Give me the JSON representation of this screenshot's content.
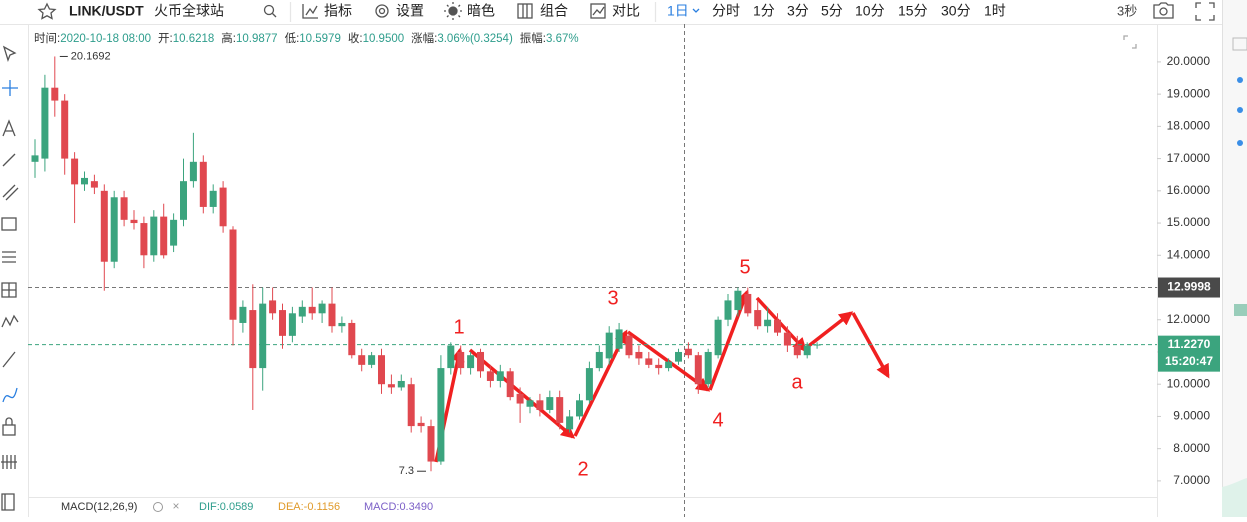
{
  "toolbar": {
    "symbol": "LINK/USDT",
    "exchange": "火币全球站",
    "tools": [
      "指标",
      "设置",
      "暗色",
      "组合",
      "对比"
    ],
    "intervals": [
      "1日",
      "分时",
      "1分",
      "3分",
      "5分",
      "10分",
      "15分",
      "30分",
      "1时"
    ],
    "refresh": "3秒"
  },
  "info": [
    {
      "label": "时间:",
      "value": "2020-10-18 08:00"
    },
    {
      "label": "开:",
      "value": "10.6218"
    },
    {
      "label": "高:",
      "value": "10.9877"
    },
    {
      "label": "低:",
      "value": "10.5979"
    },
    {
      "label": "收:",
      "value": "10.9500"
    },
    {
      "label": "涨幅:",
      "value": "3.06%(0.3254)"
    },
    {
      "label": "振幅:",
      "value": "3.67%"
    }
  ],
  "chart_data": {
    "type": "candlestick",
    "open": [
      16.9,
      17.0,
      19.2,
      18.8,
      17.0,
      16.2,
      16.3,
      16.0,
      13.8,
      15.8,
      15.1,
      15.0,
      14.0,
      15.2,
      14.3,
      15.1,
      16.3,
      16.9,
      15.5,
      16.1,
      14.8,
      11.9,
      12.3,
      10.5,
      12.6,
      12.3,
      11.5,
      12.1,
      12.4,
      12.2,
      12.5,
      11.8,
      11.9,
      10.9,
      10.6,
      10.9,
      10.0,
      9.9,
      10.0,
      8.8,
      8.7,
      7.6,
      10.5,
      11.0,
      10.5,
      11.0,
      10.4,
      10.1,
      10.4,
      9.7,
      9.3,
      9.5,
      9.2,
      9.6,
      8.6,
      9.0,
      9.5,
      10.5,
      10.8,
      11.1,
      11.5,
      11.0,
      10.8,
      10.6,
      10.5,
      10.7,
      11.1,
      10.9,
      10.0,
      10.9,
      12.0,
      12.3,
      12.8,
      12.3,
      11.8,
      12.0,
      11.6,
      11.2,
      10.9,
      11.2
    ],
    "high": [
      17.6,
      19.6,
      20.1692,
      19.0,
      17.2,
      16.6,
      16.5,
      16.2,
      16.0,
      16.0,
      15.4,
      15.2,
      15.4,
      15.6,
      15.3,
      17.0,
      17.8,
      17.1,
      16.2,
      16.3,
      14.9,
      12.6,
      13.1,
      13.0,
      13.0,
      12.5,
      12.4,
      12.6,
      13.0,
      12.6,
      13.0,
      12.1,
      12.0,
      11.1,
      11.0,
      11.1,
      10.3,
      10.3,
      10.2,
      9.0,
      8.9,
      10.9,
      11.3,
      11.2,
      11.0,
      11.1,
      10.6,
      10.6,
      10.5,
      9.9,
      9.6,
      9.7,
      9.8,
      9.8,
      9.2,
      9.7,
      10.7,
      11.2,
      11.8,
      11.9,
      11.6,
      11.2,
      11.0,
      10.8,
      10.8,
      11.1,
      11.3,
      11.0,
      11.1,
      12.1,
      12.8,
      13.0,
      13.0,
      12.6,
      12.4,
      12.2,
      11.8,
      11.5,
      11.3,
      11.3
    ],
    "low": [
      16.4,
      16.6,
      18.3,
      16.5,
      15.0,
      16.0,
      15.9,
      12.9,
      13.6,
      14.9,
      14.8,
      13.6,
      13.8,
      13.9,
      14.1,
      14.9,
      16.1,
      15.3,
      15.3,
      14.7,
      11.2,
      11.6,
      9.2,
      9.8,
      12.0,
      11.1,
      11.3,
      11.9,
      12.0,
      11.9,
      11.6,
      11.6,
      10.8,
      10.4,
      10.5,
      9.7,
      9.7,
      9.8,
      8.5,
      8.5,
      7.3,
      7.5,
      10.3,
      10.3,
      10.3,
      10.2,
      9.9,
      9.9,
      9.5,
      8.8,
      9.1,
      9.0,
      9.1,
      8.6,
      8.5,
      8.9,
      9.4,
      10.4,
      10.6,
      11.0,
      10.8,
      10.6,
      10.5,
      10.3,
      10.4,
      10.6,
      10.8,
      9.7,
      9.9,
      10.8,
      11.8,
      12.1,
      12.1,
      11.7,
      11.6,
      11.5,
      11.0,
      10.8,
      10.8,
      11.1
    ],
    "close": [
      17.1,
      19.2,
      18.8,
      17.0,
      16.2,
      16.4,
      16.1,
      13.8,
      15.8,
      15.1,
      15.0,
      14.0,
      15.2,
      14.0,
      15.1,
      16.3,
      16.9,
      15.5,
      16.0,
      14.9,
      12.0,
      12.4,
      10.5,
      12.5,
      12.2,
      11.5,
      12.2,
      12.4,
      12.2,
      12.5,
      11.8,
      11.9,
      10.9,
      10.6,
      10.9,
      10.0,
      9.9,
      10.1,
      8.7,
      8.7,
      7.6,
      10.5,
      11.2,
      10.5,
      10.9,
      10.4,
      10.1,
      10.4,
      9.6,
      9.4,
      9.5,
      9.2,
      9.6,
      8.8,
      9.0,
      9.5,
      10.5,
      11.0,
      11.6,
      11.7,
      10.9,
      10.8,
      10.6,
      10.5,
      10.7,
      11.0,
      10.9,
      10.0,
      11.0,
      12.0,
      12.6,
      12.9,
      12.2,
      11.8,
      12.0,
      11.6,
      11.2,
      10.9,
      11.2,
      11.23
    ],
    "up_color": "#3ba47e",
    "down_color": "#e0484f",
    "ylim": [
      6.5,
      20.99
    ],
    "yticks": [
      {
        "value": 7,
        "label": "7.0000"
      },
      {
        "value": 8,
        "label": "8.0000"
      },
      {
        "value": 9,
        "label": "9.0000"
      },
      {
        "value": 10,
        "label": "10.0000"
      },
      {
        "value": 11,
        "label": "11.0000"
      },
      {
        "value": 12,
        "label": "12.0000"
      },
      {
        "value": 13,
        "label": "13.0000"
      },
      {
        "value": 14,
        "label": "14.0000"
      },
      {
        "value": 15,
        "label": "15.0000"
      },
      {
        "value": 16,
        "label": "16.0000"
      },
      {
        "value": 17,
        "label": "17.0000"
      },
      {
        "value": 18,
        "label": "18.0000"
      },
      {
        "value": 19,
        "label": "19.0000"
      },
      {
        "value": 20,
        "label": "20.0000"
      }
    ],
    "max_marker": 20.1692,
    "min_marker": 7.3,
    "crosshair_price": 12.9998,
    "last_price": {
      "value": 11.227,
      "label": "11.2270"
    },
    "countdown": "15:20:47",
    "wave_labels": [
      "1",
      "2",
      "3",
      "4",
      "5",
      "a"
    ]
  },
  "indicator": {
    "name": "MACD(12,26,9)",
    "values": [
      "DIF:0.0589",
      "DEA:-0.1156",
      "MACD:0.3490"
    ]
  }
}
